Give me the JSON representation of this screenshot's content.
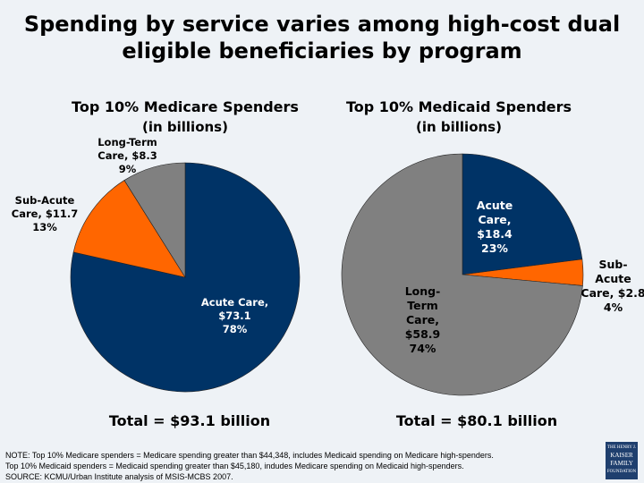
{
  "title_line1": "Spending by service varies among high-cost dual",
  "title_line2": "eligible beneficiaries by program",
  "colors": {
    "acute": "#003366",
    "sub_acute": "#ff6600",
    "long_term": "#808080",
    "background": "#eef2f6"
  },
  "chart_data": [
    {
      "type": "pie",
      "title": "Top 10% Medicare Spenders",
      "subtitle": "(in billions)",
      "total_label": "Total = $93.1 billion",
      "slices": [
        {
          "name": "Acute Care",
          "value": 73.1,
          "percent": 78,
          "label_lines": [
            "Acute Care,",
            "$73.1",
            "78%"
          ]
        },
        {
          "name": "Sub-Acute Care",
          "value": 11.7,
          "percent": 13,
          "label_lines": [
            "Sub-Acute",
            "Care, $11.7",
            "13%"
          ]
        },
        {
          "name": "Long-Term Care",
          "value": 8.3,
          "percent": 9,
          "label_lines": [
            "Long-Term",
            "Care, $8.3",
            "9%"
          ]
        }
      ]
    },
    {
      "type": "pie",
      "title": "Top 10% Medicaid Spenders",
      "subtitle": "(in billions)",
      "total_label": "Total = $80.1 billion",
      "slices": [
        {
          "name": "Acute Care",
          "value": 18.4,
          "percent": 23,
          "label_lines": [
            "Acute",
            "Care,",
            "$18.4",
            "23%"
          ]
        },
        {
          "name": "Sub-Acute Care",
          "value": 2.8,
          "percent": 4,
          "label_lines": [
            "Sub-",
            "Acute",
            "Care, $2.8",
            "4%"
          ]
        },
        {
          "name": "Long-Term Care",
          "value": 58.9,
          "percent": 74,
          "label_lines": [
            "Long-",
            "Term",
            "Care,",
            "$58.9",
            "74%"
          ]
        }
      ]
    }
  ],
  "notes": [
    "NOTE: Top 10% Medicare spenders  = Medicare spending greater than  $44,348, includes Medicaid spending on Medicare high-spenders.",
    "Top 10% Medicaid  spenders  = Medicaid spending greater than $45,180, indudes Medicare spending on Medicaid high-spenders.",
    "SOURCE: KCMU/Urban Institute analysis of MSIS-MCBS 2007."
  ],
  "logo_text": [
    "THE HENRY J.",
    "KAISER",
    "FAMILY",
    "FOUNDATION"
  ]
}
